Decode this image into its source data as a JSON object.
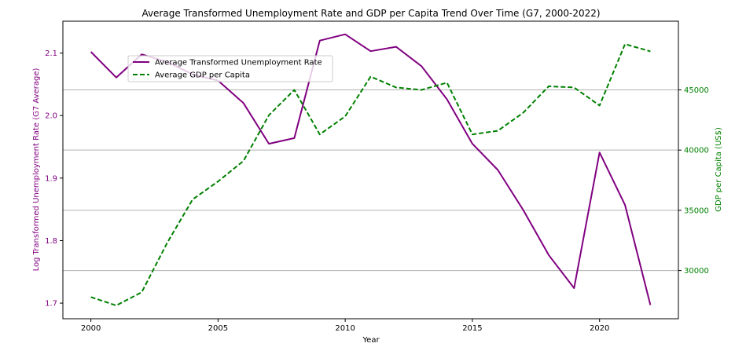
{
  "chart_data": {
    "type": "line",
    "title": "Average Transformed Unemployment Rate and GDP per Capita Trend Over Time (G7, 2000-2022)",
    "xlabel": "Year",
    "ylabel_left": "Log Transformed Unemployment Rate (G7 Average)",
    "ylabel_right": "GDP per Capita (US$)",
    "x": [
      2000,
      2001,
      2002,
      2003,
      2004,
      2005,
      2006,
      2007,
      2008,
      2009,
      2010,
      2011,
      2012,
      2013,
      2014,
      2015,
      2016,
      2017,
      2018,
      2019,
      2020,
      2021,
      2022
    ],
    "xlim": [
      1998.9,
      2023.1
    ],
    "x_ticks": [
      "2000",
      "2005",
      "2010",
      "2015",
      "2020"
    ],
    "ylim_left": [
      1.675,
      2.151
    ],
    "y_ticks_left": [
      "1.7",
      "1.8",
      "1.9",
      "2.0",
      "2.1"
    ],
    "ylim_right": [
      26000,
      50700
    ],
    "y_ticks_right": [
      "30000",
      "35000",
      "40000",
      "45000"
    ],
    "grid": "horizontal lines at right-axis ticks",
    "legend_position": "upper-left",
    "series": [
      {
        "name": "Average Transformed Unemployment Rate",
        "axis": "left",
        "color": "#800080",
        "style": "solid",
        "values": [
          2.102,
          2.061,
          2.098,
          2.086,
          2.066,
          2.056,
          2.02,
          1.955,
          1.964,
          2.12,
          2.13,
          2.103,
          2.11,
          2.079,
          2.026,
          1.955,
          1.913,
          1.849,
          1.777,
          1.724,
          1.941,
          1.857,
          1.697
        ]
      },
      {
        "name": "Average GDP per Capita",
        "axis": "right",
        "color": "#008000",
        "style": "dashed",
        "values": [
          27800,
          27100,
          28200,
          32300,
          35900,
          37400,
          39100,
          42900,
          45000,
          41300,
          42800,
          46100,
          45200,
          45000,
          45600,
          41300,
          41600,
          43100,
          45300,
          45200,
          43700,
          48800,
          48200
        ]
      }
    ]
  }
}
